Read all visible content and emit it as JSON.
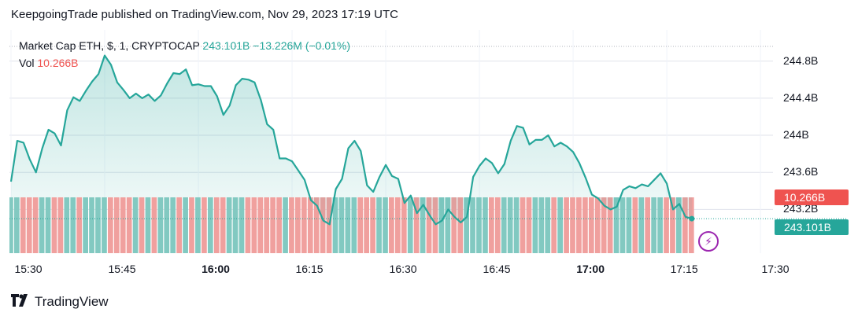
{
  "header": {
    "published": "KeepgoingTrade published on TradingView.com, Nov 29, 2023 17:19 UTC"
  },
  "legend": {
    "symbol": "Market Cap ETH, $, 1, CRYPTOCAP",
    "last": "243.101B",
    "change": "−13.226M (−0.01%)",
    "vol_label": "Vol",
    "vol_value": "10.266B"
  },
  "badges": {
    "volume": "10.266B",
    "price": "243.101B"
  },
  "footer": {
    "brand": "TradingView"
  },
  "colors": {
    "up": "#26a69a",
    "down": "#ef5350",
    "vol_up": "#82c9c1",
    "vol_down": "#f0a09e",
    "event": "#9c27b0"
  },
  "chart_data": {
    "type": "area",
    "title": "Market Cap ETH, $, 1, CRYPTOCAP",
    "xlabel": "",
    "ylabel": "",
    "yticks": [
      "244.8B",
      "244.4B",
      "244B",
      "243.6B",
      "243.2B"
    ],
    "ytick_values": [
      244.8,
      244.4,
      244.0,
      243.6,
      243.2
    ],
    "ylim": [
      243.0,
      244.95
    ],
    "xticks": [
      "15:30",
      "15:45",
      "16:00",
      "16:15",
      "16:30",
      "16:45",
      "17:00",
      "17:15",
      "17:30"
    ],
    "xticks_bold": [
      "16:00",
      "17:00"
    ],
    "x_start": "15:30",
    "x_end": "17:32",
    "last_point": {
      "time": "17:19",
      "value": 243.101
    },
    "series": [
      {
        "name": "Market Cap ETH",
        "times": [
          "15:30",
          "15:31",
          "15:32",
          "15:33",
          "15:34",
          "15:35",
          "15:36",
          "15:37",
          "15:38",
          "15:39",
          "15:40",
          "15:41",
          "15:42",
          "15:43",
          "15:44",
          "15:45",
          "15:46",
          "15:47",
          "15:48",
          "15:49",
          "15:50",
          "15:51",
          "15:52",
          "15:53",
          "15:54",
          "15:55",
          "15:56",
          "15:57",
          "15:58",
          "15:59",
          "16:00",
          "16:01",
          "16:02",
          "16:03",
          "16:04",
          "16:05",
          "16:06",
          "16:07",
          "16:08",
          "16:09",
          "16:10",
          "16:11",
          "16:12",
          "16:13",
          "16:14",
          "16:15",
          "16:16",
          "16:17",
          "16:18",
          "16:19",
          "16:20",
          "16:21",
          "16:22",
          "16:23",
          "16:24",
          "16:25",
          "16:26",
          "16:27",
          "16:28",
          "16:29",
          "16:30",
          "16:31",
          "16:32",
          "16:33",
          "16:34",
          "16:35",
          "16:36",
          "16:37",
          "16:38",
          "16:39",
          "16:40",
          "16:41",
          "16:42",
          "16:43",
          "16:44",
          "16:45",
          "16:46",
          "16:47",
          "16:48",
          "16:49",
          "16:50",
          "16:51",
          "16:52",
          "16:53",
          "16:54",
          "16:55",
          "16:56",
          "16:57",
          "16:58",
          "16:59",
          "17:00",
          "17:01",
          "17:02",
          "17:03",
          "17:04",
          "17:05",
          "17:06",
          "17:07",
          "17:08",
          "17:09",
          "17:10",
          "17:11",
          "17:12",
          "17:13",
          "17:14",
          "17:15",
          "17:16",
          "17:17",
          "17:18",
          "17:19"
        ],
        "values": [
          243.5,
          243.94,
          243.92,
          243.74,
          243.6,
          243.86,
          244.06,
          244.02,
          243.89,
          244.27,
          244.41,
          244.37,
          244.48,
          244.58,
          244.66,
          244.86,
          244.76,
          244.57,
          244.49,
          244.4,
          244.45,
          244.4,
          244.44,
          244.37,
          244.43,
          244.56,
          244.67,
          244.66,
          244.71,
          244.54,
          244.55,
          244.53,
          244.53,
          244.42,
          244.22,
          244.32,
          244.54,
          244.61,
          244.6,
          244.57,
          244.38,
          244.12,
          244.06,
          243.75,
          243.75,
          243.72,
          243.62,
          243.52,
          243.3,
          243.24,
          243.08,
          243.04,
          243.42,
          243.53,
          243.86,
          243.94,
          243.83,
          243.46,
          243.39,
          243.55,
          243.68,
          243.56,
          243.53,
          243.27,
          243.35,
          243.16,
          243.25,
          243.14,
          243.04,
          243.08,
          243.2,
          243.12,
          243.06,
          243.12,
          243.55,
          243.67,
          243.75,
          243.7,
          243.59,
          243.69,
          243.94,
          244.1,
          244.08,
          243.9,
          243.95,
          243.95,
          244.0,
          243.88,
          243.92,
          243.88,
          243.82,
          243.7,
          243.54,
          243.36,
          243.32,
          243.24,
          243.2,
          243.23,
          243.41,
          243.45,
          243.43,
          243.47,
          243.45,
          243.52,
          243.59,
          243.48,
          243.2,
          243.26,
          243.12,
          243.1
        ]
      }
    ],
    "volume": {
      "name": "Vol",
      "last": "10.266B",
      "pattern": "mixed up/down bars per minute"
    }
  }
}
